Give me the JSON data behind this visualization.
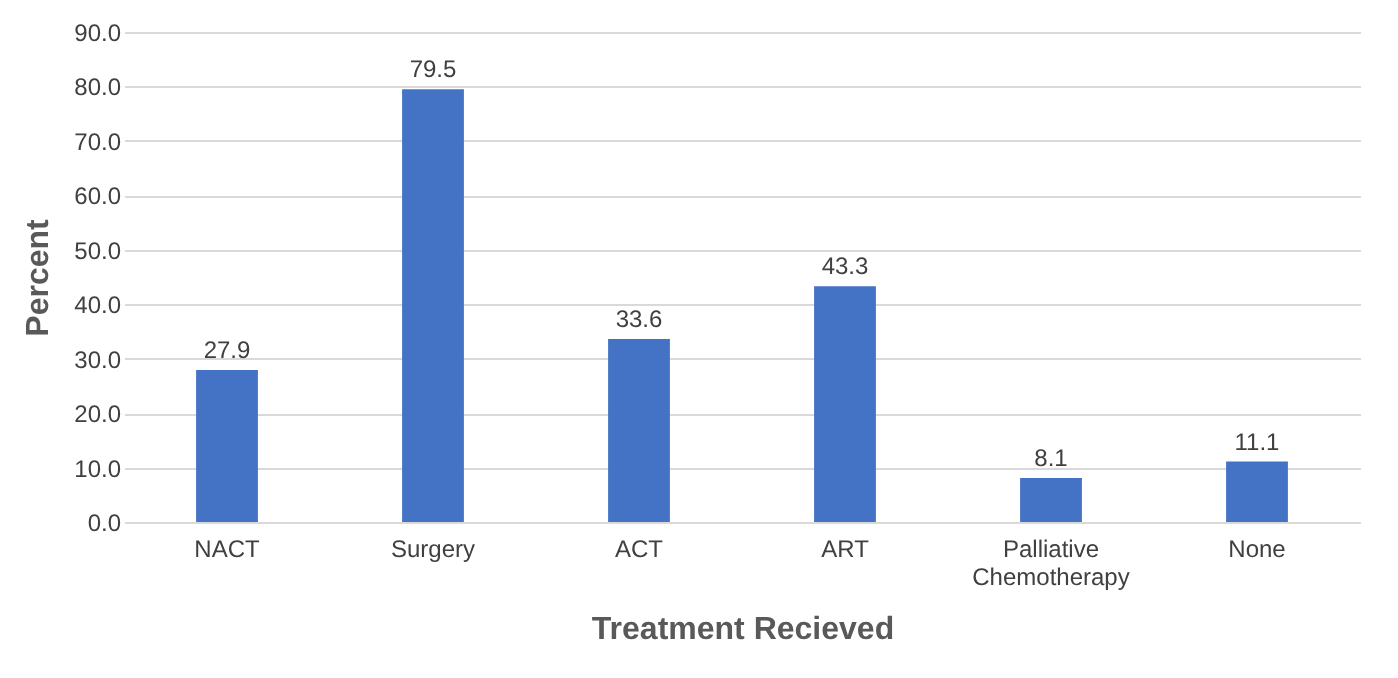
{
  "chart_data": {
    "type": "bar",
    "xlabel": "Treatment Recieved",
    "ylabel": "Percent",
    "categories": [
      "NACT",
      "Surgery",
      "ACT",
      "ART",
      "Palliative Chemotherapy",
      "None"
    ],
    "values": [
      27.9,
      79.5,
      33.6,
      43.3,
      8.1,
      11.1
    ],
    "color": "#4472c4",
    "ylim": [
      0,
      90
    ],
    "yticks": [
      {
        "value": 0,
        "label": "0.0"
      },
      {
        "value": 10,
        "label": "10.0"
      },
      {
        "value": 20,
        "label": "20.0"
      },
      {
        "value": 30,
        "label": "30.0"
      },
      {
        "value": 40,
        "label": "40.0"
      },
      {
        "value": 50,
        "label": "50.0"
      },
      {
        "value": 60,
        "label": "60.0"
      },
      {
        "value": 70,
        "label": "70.0"
      },
      {
        "value": 80,
        "label": "80.0"
      },
      {
        "value": 90,
        "label": "90.0"
      }
    ],
    "grid": true,
    "data_labels": true
  }
}
